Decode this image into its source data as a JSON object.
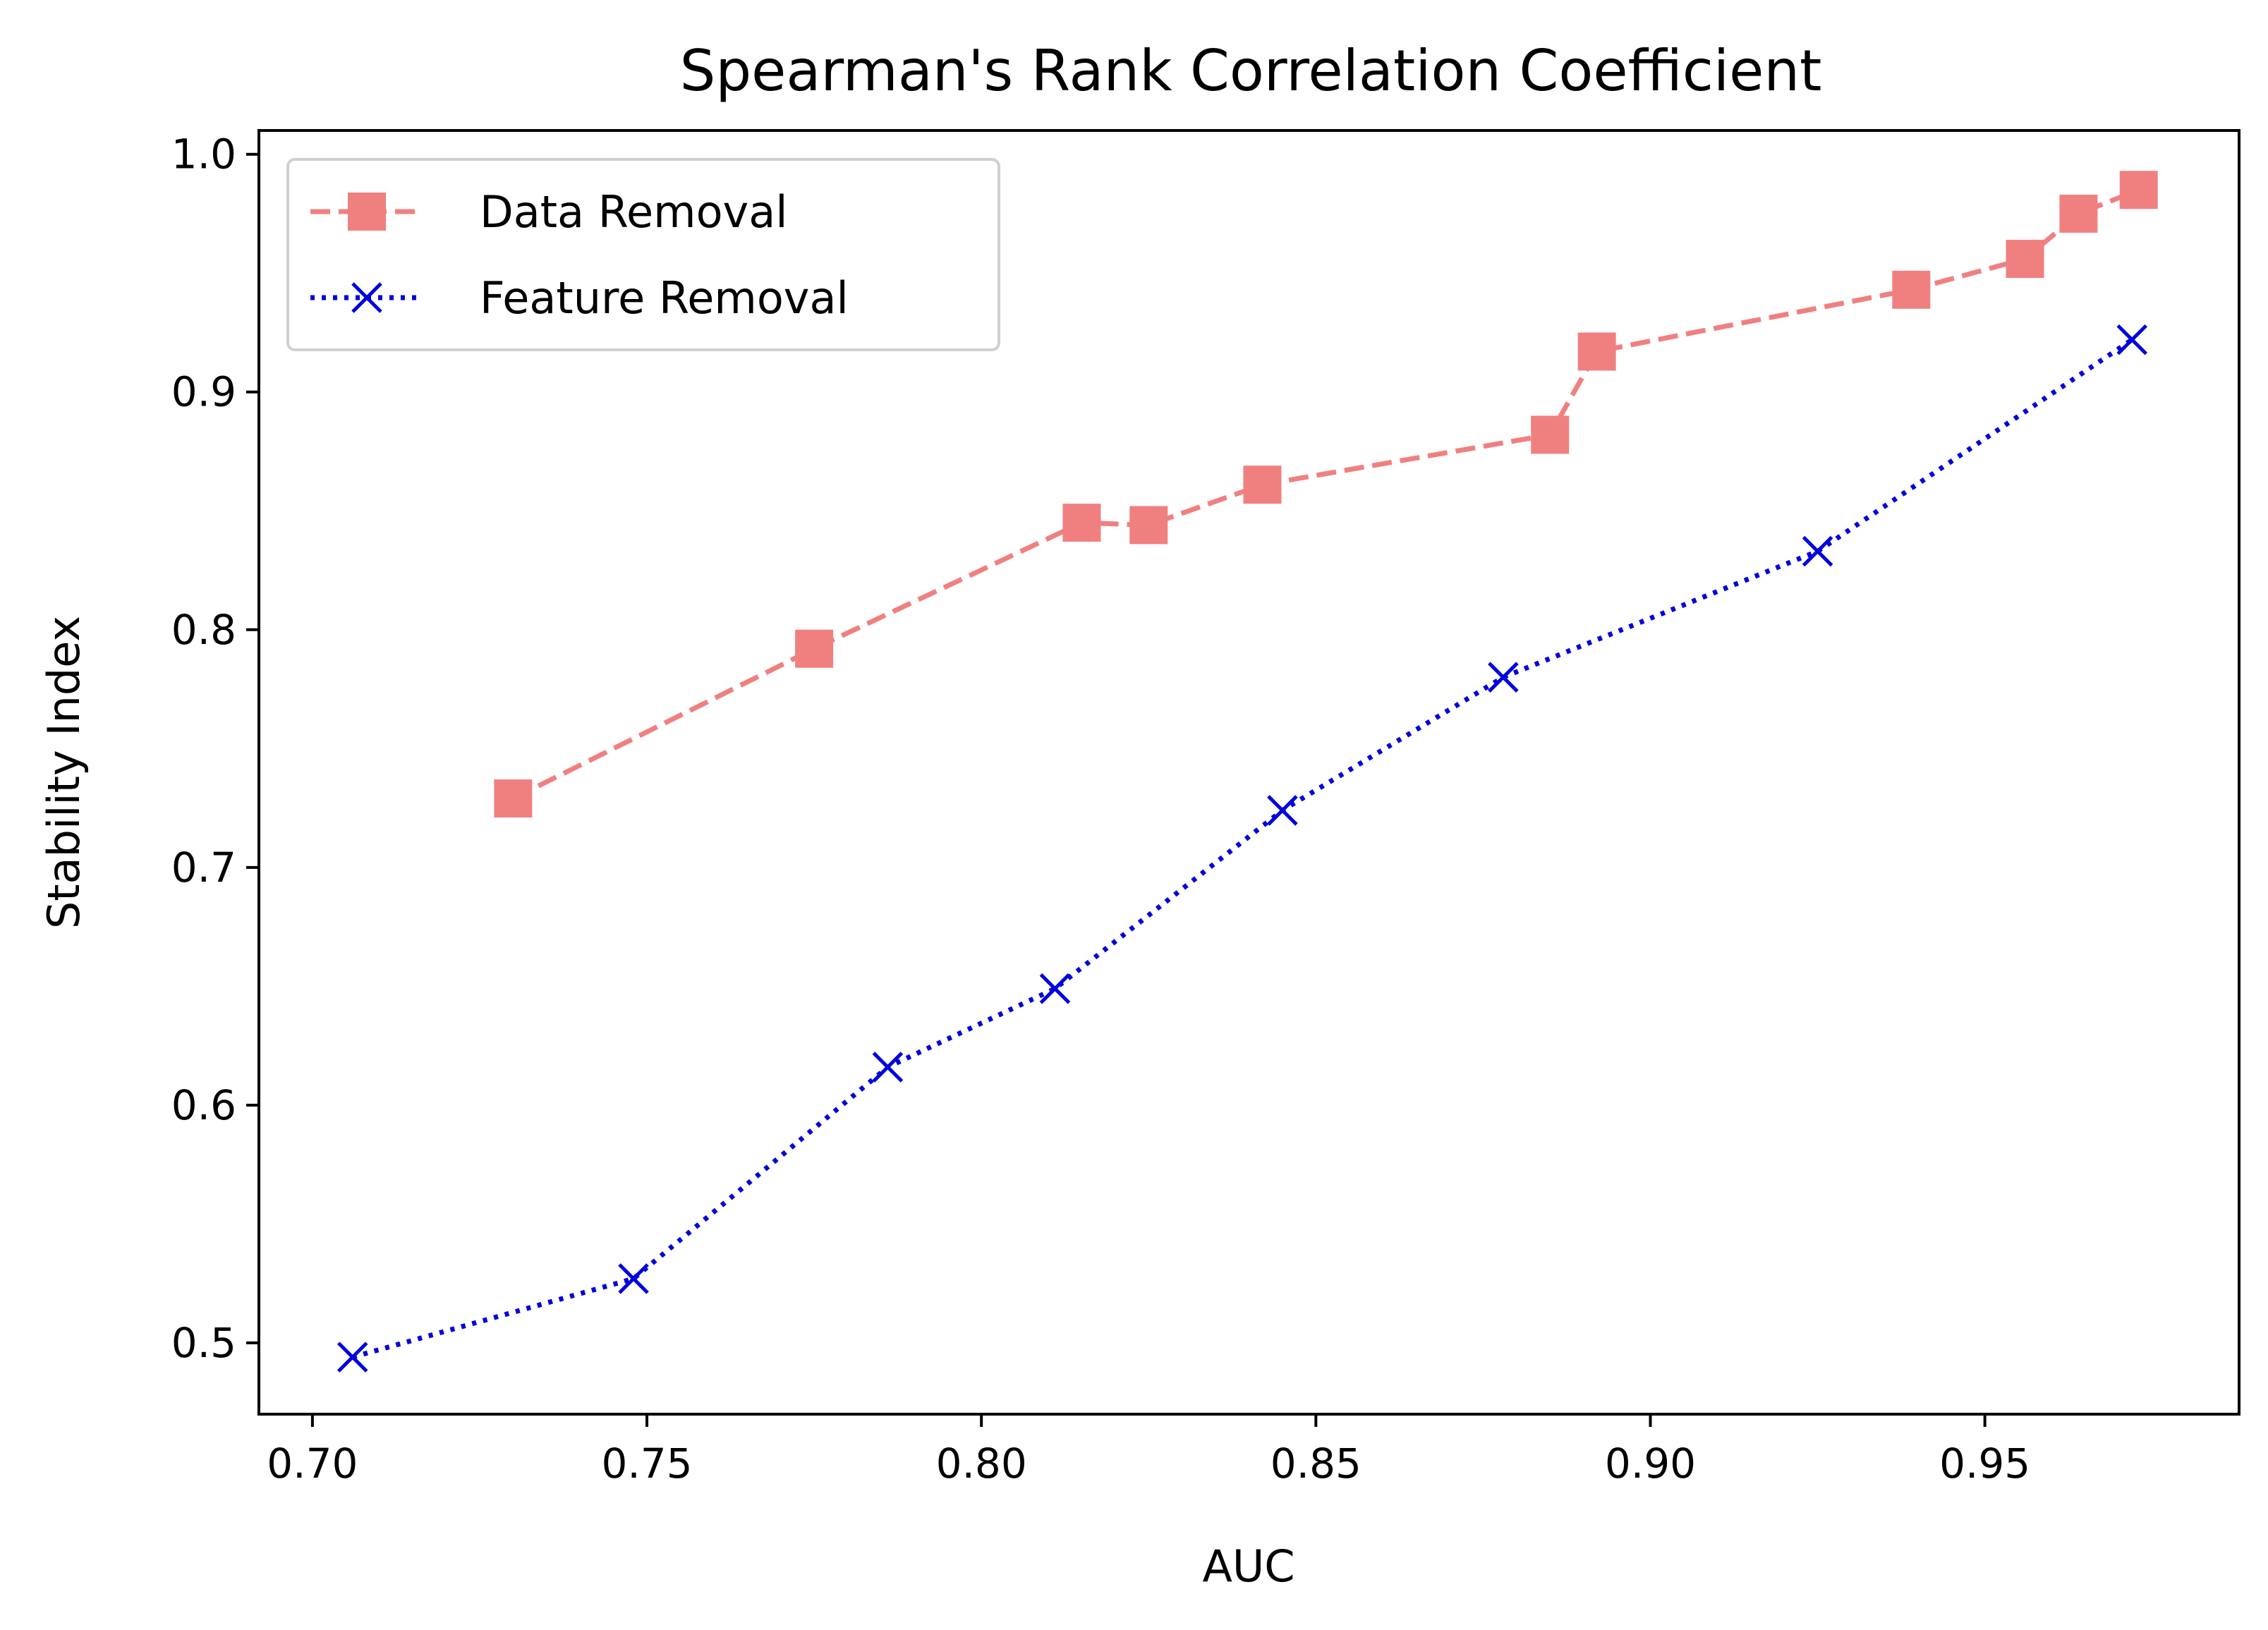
{
  "chart_data": {
    "type": "line",
    "title": "Spearman's Rank Correlation Coefficient",
    "xlabel": "AUC",
    "ylabel": "Stability Index",
    "xlim": [
      0.692,
      0.988
    ],
    "ylim": [
      0.47,
      1.01
    ],
    "xticks": [
      0.7,
      0.75,
      0.8,
      0.85,
      0.9,
      0.95
    ],
    "xtick_labels": [
      "0.70",
      "0.75",
      "0.80",
      "0.85",
      "0.90",
      "0.95"
    ],
    "yticks": [
      0.5,
      0.6,
      0.7,
      0.8,
      0.9,
      1.0
    ],
    "ytick_labels": [
      "0.5",
      "0.6",
      "0.7",
      "0.8",
      "0.9",
      "1.0"
    ],
    "grid": false,
    "legend_position": "top-left",
    "series": [
      {
        "name": "Data Removal",
        "color": "#f08080",
        "line_style": "dashed",
        "marker": "square",
        "x": [
          0.73,
          0.775,
          0.815,
          0.825,
          0.842,
          0.885,
          0.892,
          0.939,
          0.956,
          0.964,
          0.973
        ],
        "y": [
          0.729,
          0.792,
          0.845,
          0.844,
          0.861,
          0.882,
          0.917,
          0.943,
          0.956,
          0.975,
          0.985
        ]
      },
      {
        "name": "Feature Removal",
        "color": "#0000dd",
        "line_style": "dotted",
        "marker": "x",
        "x": [
          0.706,
          0.748,
          0.786,
          0.811,
          0.845,
          0.878,
          0.925,
          0.972
        ],
        "y": [
          0.494,
          0.527,
          0.616,
          0.649,
          0.724,
          0.78,
          0.833,
          0.922
        ]
      }
    ]
  }
}
